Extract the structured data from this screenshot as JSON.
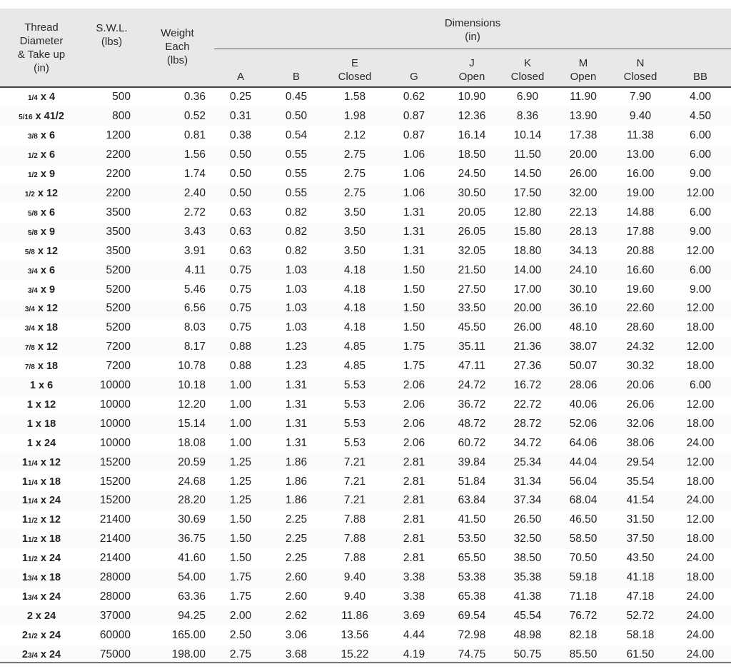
{
  "headers": {
    "thread": [
      "Thread",
      "Diameter",
      "& Take up",
      "(in)"
    ],
    "swl": [
      "S.W.L.",
      "(lbs)"
    ],
    "weight": [
      "Weight",
      "Each",
      "(lbs)"
    ],
    "dimensions": [
      "Dimensions",
      "(in)"
    ],
    "dims": [
      {
        "l1": "A",
        "l2": ""
      },
      {
        "l1": "B",
        "l2": ""
      },
      {
        "l1": "E",
        "l2": "Closed"
      },
      {
        "l1": "G",
        "l2": ""
      },
      {
        "l1": "J",
        "l2": "Open"
      },
      {
        "l1": "K",
        "l2": "Closed"
      },
      {
        "l1": "M",
        "l2": "Open"
      },
      {
        "l1": "N",
        "l2": "Closed"
      },
      {
        "l1": "BB",
        "l2": ""
      }
    ]
  },
  "rows": [
    {
      "whole": "",
      "frac": "1/4",
      "take": "4",
      "swl": "500",
      "wt": "0.36",
      "dims": [
        "0.25",
        "0.45",
        "1.58",
        "0.62",
        "10.90",
        "6.90",
        "11.90",
        "7.90",
        "4.00"
      ]
    },
    {
      "whole": "",
      "frac": "5/16",
      "take": "41/2",
      "swl": "800",
      "wt": "0.52",
      "dims": [
        "0.31",
        "0.50",
        "1.98",
        "0.87",
        "12.36",
        "8.36",
        "13.90",
        "9.40",
        "4.50"
      ]
    },
    {
      "whole": "",
      "frac": "3/8",
      "take": "6",
      "swl": "1200",
      "wt": "0.81",
      "dims": [
        "0.38",
        "0.54",
        "2.12",
        "0.87",
        "16.14",
        "10.14",
        "17.38",
        "11.38",
        "6.00"
      ]
    },
    {
      "whole": "",
      "frac": "1/2",
      "take": "6",
      "swl": "2200",
      "wt": "1.56",
      "dims": [
        "0.50",
        "0.55",
        "2.75",
        "1.06",
        "18.50",
        "11.50",
        "20.00",
        "13.00",
        "6.00"
      ]
    },
    {
      "whole": "",
      "frac": "1/2",
      "take": "9",
      "swl": "2200",
      "wt": "1.74",
      "dims": [
        "0.50",
        "0.55",
        "2.75",
        "1.06",
        "24.50",
        "14.50",
        "26.00",
        "16.00",
        "9.00"
      ]
    },
    {
      "whole": "",
      "frac": "1/2",
      "take": "12",
      "swl": "2200",
      "wt": "2.40",
      "dims": [
        "0.50",
        "0.55",
        "2.75",
        "1.06",
        "30.50",
        "17.50",
        "32.00",
        "19.00",
        "12.00"
      ]
    },
    {
      "whole": "",
      "frac": "5/8",
      "take": "6",
      "swl": "3500",
      "wt": "2.72",
      "dims": [
        "0.63",
        "0.82",
        "3.50",
        "1.31",
        "20.05",
        "12.80",
        "22.13",
        "14.88",
        "6.00"
      ]
    },
    {
      "whole": "",
      "frac": "5/8",
      "take": "9",
      "swl": "3500",
      "wt": "3.43",
      "dims": [
        "0.63",
        "0.82",
        "3.50",
        "1.31",
        "26.05",
        "15.80",
        "28.13",
        "17.88",
        "9.00"
      ]
    },
    {
      "whole": "",
      "frac": "5/8",
      "take": "12",
      "swl": "3500",
      "wt": "3.91",
      "dims": [
        "0.63",
        "0.82",
        "3.50",
        "1.31",
        "32.05",
        "18.80",
        "34.13",
        "20.88",
        "12.00"
      ]
    },
    {
      "whole": "",
      "frac": "3/4",
      "take": "6",
      "swl": "5200",
      "wt": "4.11",
      "dims": [
        "0.75",
        "1.03",
        "4.18",
        "1.50",
        "21.50",
        "14.00",
        "24.10",
        "16.60",
        "6.00"
      ]
    },
    {
      "whole": "",
      "frac": "3/4",
      "take": "9",
      "swl": "5200",
      "wt": "5.46",
      "dims": [
        "0.75",
        "1.03",
        "4.18",
        "1.50",
        "27.50",
        "17.00",
        "30.10",
        "19.60",
        "9.00"
      ]
    },
    {
      "whole": "",
      "frac": "3/4",
      "take": "12",
      "swl": "5200",
      "wt": "6.56",
      "dims": [
        "0.75",
        "1.03",
        "4.18",
        "1.50",
        "33.50",
        "20.00",
        "36.10",
        "22.60",
        "12.00"
      ]
    },
    {
      "whole": "",
      "frac": "3/4",
      "take": "18",
      "swl": "5200",
      "wt": "8.03",
      "dims": [
        "0.75",
        "1.03",
        "4.18",
        "1.50",
        "45.50",
        "26.00",
        "48.10",
        "28.60",
        "18.00"
      ]
    },
    {
      "whole": "",
      "frac": "7/8",
      "take": "12",
      "swl": "7200",
      "wt": "8.17",
      "dims": [
        "0.88",
        "1.23",
        "4.85",
        "1.75",
        "35.11",
        "21.36",
        "38.07",
        "24.32",
        "12.00"
      ]
    },
    {
      "whole": "",
      "frac": "7/8",
      "take": "18",
      "swl": "7200",
      "wt": "10.78",
      "dims": [
        "0.88",
        "1.23",
        "4.85",
        "1.75",
        "47.11",
        "27.36",
        "50.07",
        "30.32",
        "18.00"
      ]
    },
    {
      "whole": "1",
      "frac": "",
      "take": "6",
      "swl": "10000",
      "wt": "10.18",
      "dims": [
        "1.00",
        "1.31",
        "5.53",
        "2.06",
        "24.72",
        "16.72",
        "28.06",
        "20.06",
        "6.00"
      ]
    },
    {
      "whole": "1",
      "frac": "",
      "take": "12",
      "swl": "10000",
      "wt": "12.20",
      "dims": [
        "1.00",
        "1.31",
        "5.53",
        "2.06",
        "36.72",
        "22.72",
        "40.06",
        "26.06",
        "12.00"
      ]
    },
    {
      "whole": "1",
      "frac": "",
      "take": "18",
      "swl": "10000",
      "wt": "15.14",
      "dims": [
        "1.00",
        "1.31",
        "5.53",
        "2.06",
        "48.72",
        "28.72",
        "52.06",
        "32.06",
        "18.00"
      ]
    },
    {
      "whole": "1",
      "frac": "",
      "take": "24",
      "swl": "10000",
      "wt": "18.08",
      "dims": [
        "1.00",
        "1.31",
        "5.53",
        "2.06",
        "60.72",
        "34.72",
        "64.06",
        "38.06",
        "24.00"
      ]
    },
    {
      "whole": "1",
      "frac": "1/4",
      "take": "12",
      "swl": "15200",
      "wt": "20.59",
      "dims": [
        "1.25",
        "1.86",
        "7.21",
        "2.81",
        "39.84",
        "25.34",
        "44.04",
        "29.54",
        "12.00"
      ]
    },
    {
      "whole": "1",
      "frac": "1/4",
      "take": "18",
      "swl": "15200",
      "wt": "24.68",
      "dims": [
        "1.25",
        "1.86",
        "7.21",
        "2.81",
        "51.84",
        "31.34",
        "56.04",
        "35.54",
        "18.00"
      ]
    },
    {
      "whole": "1",
      "frac": "1/4",
      "take": "24",
      "swl": "15200",
      "wt": "28.20",
      "dims": [
        "1.25",
        "1.86",
        "7.21",
        "2.81",
        "63.84",
        "37.34",
        "68.04",
        "41.54",
        "24.00"
      ]
    },
    {
      "whole": "1",
      "frac": "1/2",
      "take": "12",
      "swl": "21400",
      "wt": "30.69",
      "dims": [
        "1.50",
        "2.25",
        "7.88",
        "2.81",
        "41.50",
        "26.50",
        "46.50",
        "31.50",
        "12.00"
      ]
    },
    {
      "whole": "1",
      "frac": "1/2",
      "take": "18",
      "swl": "21400",
      "wt": "36.75",
      "dims": [
        "1.50",
        "2.25",
        "7.88",
        "2.81",
        "53.50",
        "32.50",
        "58.50",
        "37.50",
        "18.00"
      ]
    },
    {
      "whole": "1",
      "frac": "1/2",
      "take": "24",
      "swl": "21400",
      "wt": "41.60",
      "dims": [
        "1.50",
        "2.25",
        "7.88",
        "2.81",
        "65.50",
        "38.50",
        "70.50",
        "43.50",
        "24.00"
      ]
    },
    {
      "whole": "1",
      "frac": "3/4",
      "take": "18",
      "swl": "28000",
      "wt": "54.00",
      "dims": [
        "1.75",
        "2.60",
        "9.40",
        "3.38",
        "53.38",
        "35.38",
        "59.18",
        "41.18",
        "18.00"
      ]
    },
    {
      "whole": "1",
      "frac": "3/4",
      "take": "24",
      "swl": "28000",
      "wt": "63.36",
      "dims": [
        "1.75",
        "2.60",
        "9.40",
        "3.38",
        "65.38",
        "41.38",
        "71.18",
        "47.18",
        "24.00"
      ]
    },
    {
      "whole": "2",
      "frac": "",
      "take": "24",
      "swl": "37000",
      "wt": "94.25",
      "dims": [
        "2.00",
        "2.62",
        "11.86",
        "3.69",
        "69.54",
        "45.54",
        "76.72",
        "52.72",
        "24.00"
      ]
    },
    {
      "whole": "2",
      "frac": "1/2",
      "take": "24",
      "swl": "60000",
      "wt": "165.00",
      "dims": [
        "2.50",
        "3.06",
        "13.56",
        "4.44",
        "72.98",
        "48.98",
        "82.18",
        "58.18",
        "24.00"
      ]
    },
    {
      "whole": "2",
      "frac": "3/4",
      "take": "24",
      "swl": "75000",
      "wt": "198.00",
      "dims": [
        "2.75",
        "3.68",
        "15.22",
        "4.19",
        "74.75",
        "50.75",
        "85.50",
        "61.50",
        "24.00"
      ]
    }
  ]
}
